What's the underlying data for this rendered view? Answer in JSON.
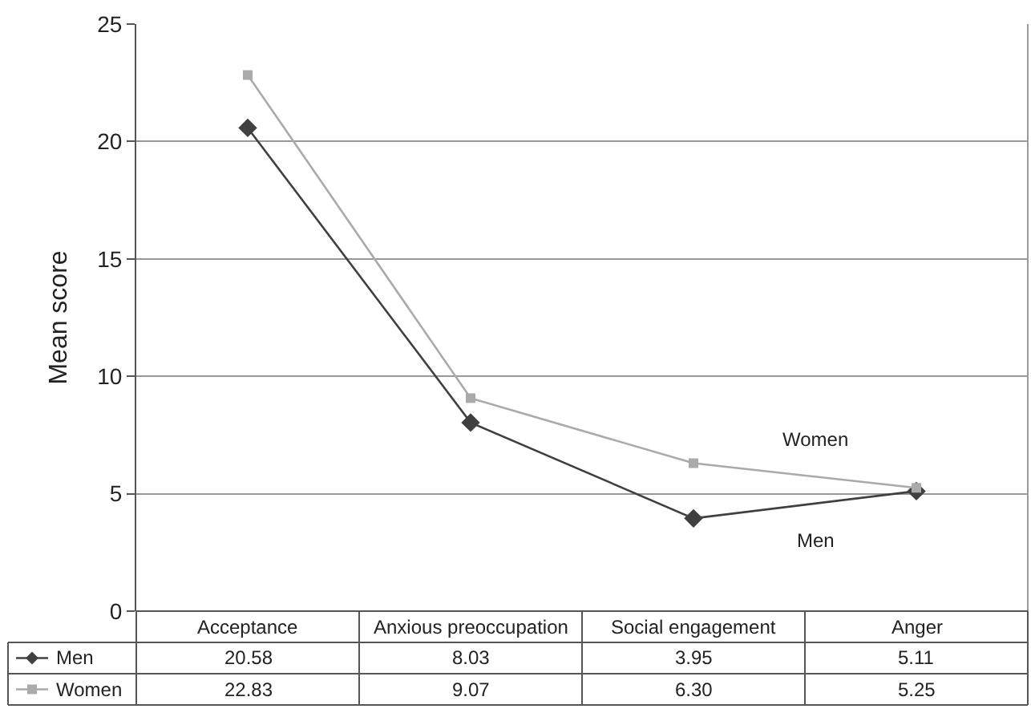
{
  "chart_data": {
    "type": "line",
    "ylabel": "Mean score",
    "categories": [
      "Acceptance",
      "Anxious preoccupation",
      "Social engagement",
      "Anger"
    ],
    "series": [
      {
        "name": "Men",
        "color": "#404040",
        "marker": "diamond",
        "values": [
          20.58,
          8.03,
          3.95,
          5.11
        ]
      },
      {
        "name": "Women",
        "color": "#aaaaaa",
        "marker": "square",
        "values": [
          22.83,
          9.07,
          6.3,
          5.25
        ]
      }
    ],
    "value_labels": [
      [
        "20.58",
        "8.03",
        "3.95",
        "5.11"
      ],
      [
        "22.83",
        "9.07",
        "6.30",
        "5.25"
      ]
    ],
    "ylim": [
      0,
      25
    ],
    "yticks": [
      0,
      5,
      10,
      15,
      20,
      25
    ],
    "grid": "y",
    "legend": "bottom left"
  }
}
